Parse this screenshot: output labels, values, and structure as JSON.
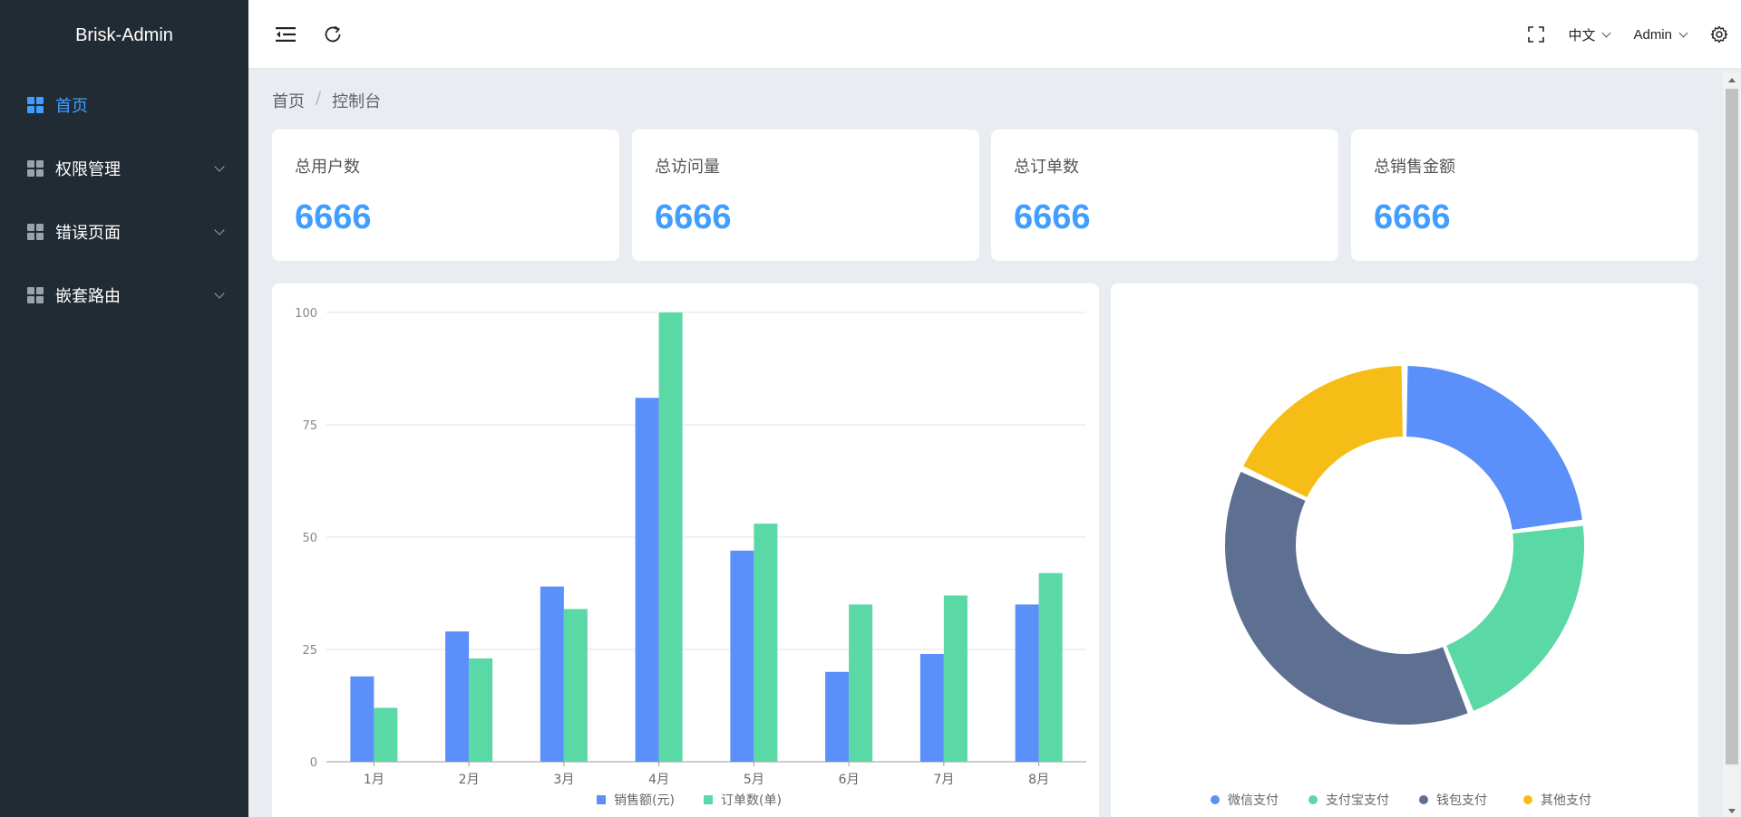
{
  "app": {
    "title": "Brisk-Admin"
  },
  "sidebar": {
    "items": [
      {
        "label": "首页",
        "active": true
      },
      {
        "label": "权限管理"
      },
      {
        "label": "错误页面"
      },
      {
        "label": "嵌套路由"
      }
    ]
  },
  "header": {
    "language": "中文",
    "user": "Admin"
  },
  "breadcrumb": {
    "home": "首页",
    "current": "控制台"
  },
  "stats": [
    {
      "title": "总用户数",
      "value": "6666"
    },
    {
      "title": "总访问量",
      "value": "6666"
    },
    {
      "title": "总订单数",
      "value": "6666"
    },
    {
      "title": "总销售金额",
      "value": "6666"
    }
  ],
  "colors": {
    "accent": "#409eff",
    "sidebar_bg": "#212b33",
    "blue": "#5b8ff9",
    "green": "#5ad8a6",
    "slate": "#5d7092",
    "yellow": "#f6bd16"
  },
  "chart_data": [
    {
      "type": "bar",
      "categories": [
        "1月",
        "2月",
        "3月",
        "4月",
        "5月",
        "6月",
        "7月",
        "8月"
      ],
      "series": [
        {
          "name": "销售额(元)",
          "values": [
            19,
            29,
            39,
            81,
            47,
            20,
            24,
            35
          ]
        },
        {
          "name": "订单数(单)",
          "values": [
            12,
            23,
            34,
            100,
            53,
            35,
            37,
            42
          ]
        }
      ],
      "yticks": [
        0,
        25,
        50,
        75,
        100
      ],
      "ylim": [
        0,
        100
      ],
      "grid": true,
      "legend": "bottom"
    },
    {
      "type": "pie",
      "donut": true,
      "labels": [
        "微信支付",
        "支付宝支付",
        "钱包支付",
        "其他支付"
      ],
      "values": [
        23,
        21,
        38,
        18
      ],
      "legend": "bottom"
    }
  ]
}
